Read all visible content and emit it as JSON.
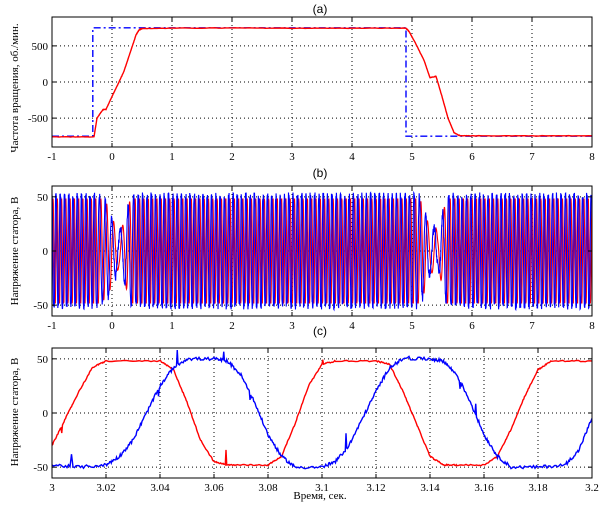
{
  "colors": {
    "red": "#ff0000",
    "blue": "#0000ff",
    "axis": "#000000",
    "grid": "#000000",
    "background": "#ffffff"
  },
  "chart_data": [
    {
      "type": "line",
      "title": "(a)",
      "xlabel": "",
      "ylabel": "Частота вращения, об./мин.",
      "xlim": [
        -1,
        8
      ],
      "ylim": [
        -900,
        900
      ],
      "xticks": [
        -1,
        0,
        1,
        2,
        3,
        4,
        5,
        6,
        7,
        8
      ],
      "xtick_labels": [
        "-1",
        "0",
        "1",
        "2",
        "3",
        "4",
        "5",
        "6",
        "7",
        "8"
      ],
      "yticks": [
        -500,
        0,
        500
      ],
      "ytick_labels": [
        "-500",
        "0",
        "500"
      ],
      "grid": true,
      "series": [
        {
          "color": "#0000ff",
          "style": "dash-dot",
          "x": [
            -1,
            -0.32,
            -0.32,
            4.9,
            4.9,
            8
          ],
          "y": [
            -750,
            -750,
            750,
            750,
            -750,
            -750
          ]
        },
        {
          "color": "#ff0000",
          "style": "solid",
          "x": [
            -1,
            -0.3,
            -0.25,
            -0.15,
            -0.1,
            0,
            0.1,
            0.2,
            0.3,
            0.4,
            0.45,
            0.5,
            1,
            2,
            3,
            4,
            4.9,
            4.95,
            5.05,
            5.2,
            5.3,
            5.4,
            5.5,
            5.6,
            5.7,
            5.8,
            6,
            7,
            8
          ],
          "y": [
            -760,
            -760,
            -500,
            -380,
            -380,
            -200,
            -30,
            150,
            400,
            650,
            720,
            740,
            745,
            748,
            745,
            745,
            745,
            700,
            550,
            300,
            60,
            80,
            -200,
            -500,
            -700,
            -745,
            -745,
            -745,
            -745
          ]
        }
      ]
    },
    {
      "type": "line",
      "title": "(b)",
      "xlabel": "",
      "ylabel": "Напряжение статора, В",
      "xlim": [
        -1,
        8
      ],
      "ylim": [
        -60,
        60
      ],
      "xticks": [
        -1,
        0,
        1,
        2,
        3,
        4,
        5,
        6,
        7,
        8
      ],
      "xtick_labels": [
        "-1",
        "0",
        "1",
        "2",
        "3",
        "4",
        "5",
        "6",
        "7",
        "8"
      ],
      "yticks": [
        -50,
        0,
        50
      ],
      "ytick_labels": [
        "-50",
        "0",
        "50"
      ],
      "grid": true,
      "series": [
        {
          "color": "#ff0000",
          "style": "solid",
          "amplitude": 48,
          "phase_shift": 0
        },
        {
          "color": "#0000ff",
          "style": "solid",
          "amplitude": 50,
          "phase_shift": 0.5
        }
      ]
    },
    {
      "type": "line",
      "title": "(c)",
      "xlabel": "Время, сек.",
      "ylabel": "Напряжение статора, В",
      "xlim": [
        3,
        3.2
      ],
      "ylim": [
        -60,
        60
      ],
      "xticks": [
        3,
        3.02,
        3.04,
        3.06,
        3.08,
        3.1,
        3.12,
        3.14,
        3.16,
        3.18,
        3.2
      ],
      "xtick_labels": [
        "3",
        "3.02",
        "3.04",
        "3.06",
        "3.08",
        "3.1",
        "3.12",
        "3.14",
        "3.16",
        "3.18",
        "3.2"
      ],
      "yticks": [
        -50,
        0,
        50
      ],
      "ytick_labels": [
        "-50",
        "0",
        "50"
      ],
      "grid": true,
      "series": [
        {
          "color": "#ff0000",
          "style": "solid",
          "x": [
            3,
            3.005,
            3.01,
            3.015,
            3.02,
            3.04,
            3.045,
            3.05,
            3.055,
            3.06,
            3.065,
            3.07,
            3.08,
            3.085,
            3.09,
            3.095,
            3.1,
            3.105,
            3.12,
            3.125,
            3.13,
            3.135,
            3.14,
            3.145,
            3.15,
            3.16,
            3.165,
            3.17,
            3.175,
            3.18,
            3.185,
            3.2
          ],
          "y": [
            -30,
            -5,
            20,
            42,
            48,
            48,
            40,
            10,
            -25,
            -45,
            -48,
            -48,
            -48,
            -40,
            -10,
            25,
            45,
            48,
            48,
            45,
            20,
            -10,
            -40,
            -48,
            -48,
            -48,
            -40,
            -15,
            15,
            40,
            48,
            48
          ]
        },
        {
          "color": "#0000ff",
          "style": "solid",
          "x": [
            3,
            3.01,
            3.02,
            3.025,
            3.03,
            3.035,
            3.04,
            3.045,
            3.05,
            3.06,
            3.065,
            3.07,
            3.075,
            3.08,
            3.085,
            3.09,
            3.1,
            3.105,
            3.11,
            3.115,
            3.12,
            3.125,
            3.13,
            3.14,
            3.145,
            3.15,
            3.155,
            3.16,
            3.165,
            3.17,
            3.18,
            3.19,
            3.195,
            3.2
          ],
          "y": [
            -48,
            -50,
            -48,
            -40,
            -25,
            0,
            25,
            42,
            50,
            50,
            48,
            35,
            10,
            -20,
            -40,
            -50,
            -50,
            -45,
            -30,
            -5,
            20,
            42,
            50,
            50,
            48,
            35,
            10,
            -20,
            -40,
            -50,
            -50,
            -48,
            -35,
            -5
          ]
        }
      ]
    }
  ]
}
